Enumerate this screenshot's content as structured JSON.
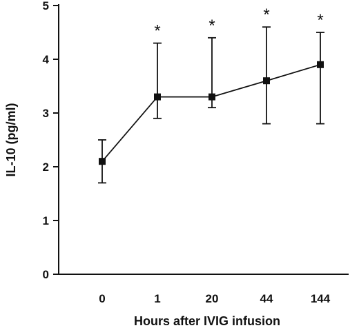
{
  "chart_data": {
    "type": "line",
    "title": "",
    "xlabel": "Hours after IVIG infusion",
    "ylabel": "IL-10 (pg/ml)",
    "categories": [
      "0",
      "1",
      "20",
      "44",
      "144"
    ],
    "ylim": [
      0,
      5
    ],
    "yticks": [
      "0",
      "1",
      "2",
      "3",
      "4",
      "5"
    ],
    "grid": false,
    "legend": "none",
    "series": [
      {
        "name": "",
        "values": [
          2.1,
          3.3,
          3.3,
          3.6,
          3.9
        ],
        "error_low": [
          1.7,
          2.9,
          3.1,
          2.8,
          2.8
        ],
        "error_high": [
          2.5,
          4.3,
          4.4,
          4.6,
          4.5
        ],
        "marker": "square",
        "color": "#111111"
      }
    ],
    "annotations": [
      "",
      "*",
      "*",
      "*",
      "*"
    ]
  }
}
